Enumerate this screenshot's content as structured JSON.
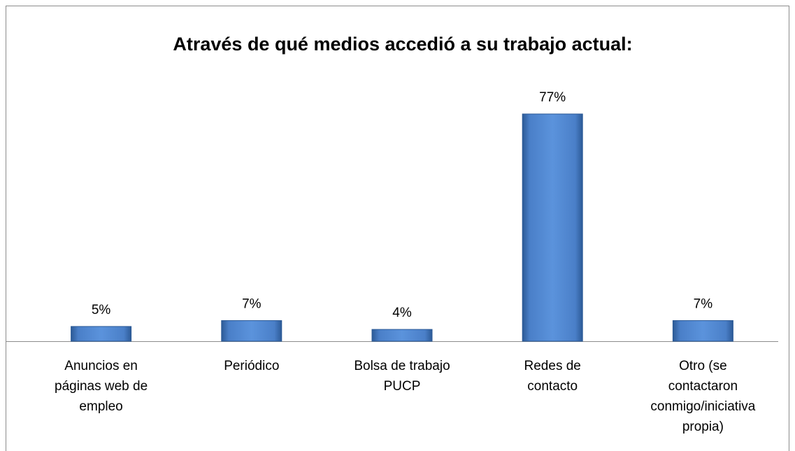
{
  "chart_data": {
    "type": "bar",
    "title": "Através de qué medios accedió a su trabajo actual:",
    "categories": [
      "Anuncios en páginas web de empleo",
      "Periódico",
      "Bolsa de trabajo PUCP",
      "Redes de contacto",
      "Otro (se contactaron conmigo/iniciativa propia)"
    ],
    "values": [
      5,
      7,
      4,
      77,
      7
    ],
    "value_labels": [
      "5%",
      "7%",
      "4%",
      "77%",
      "7%"
    ],
    "color": "#4a7fc8"
  }
}
